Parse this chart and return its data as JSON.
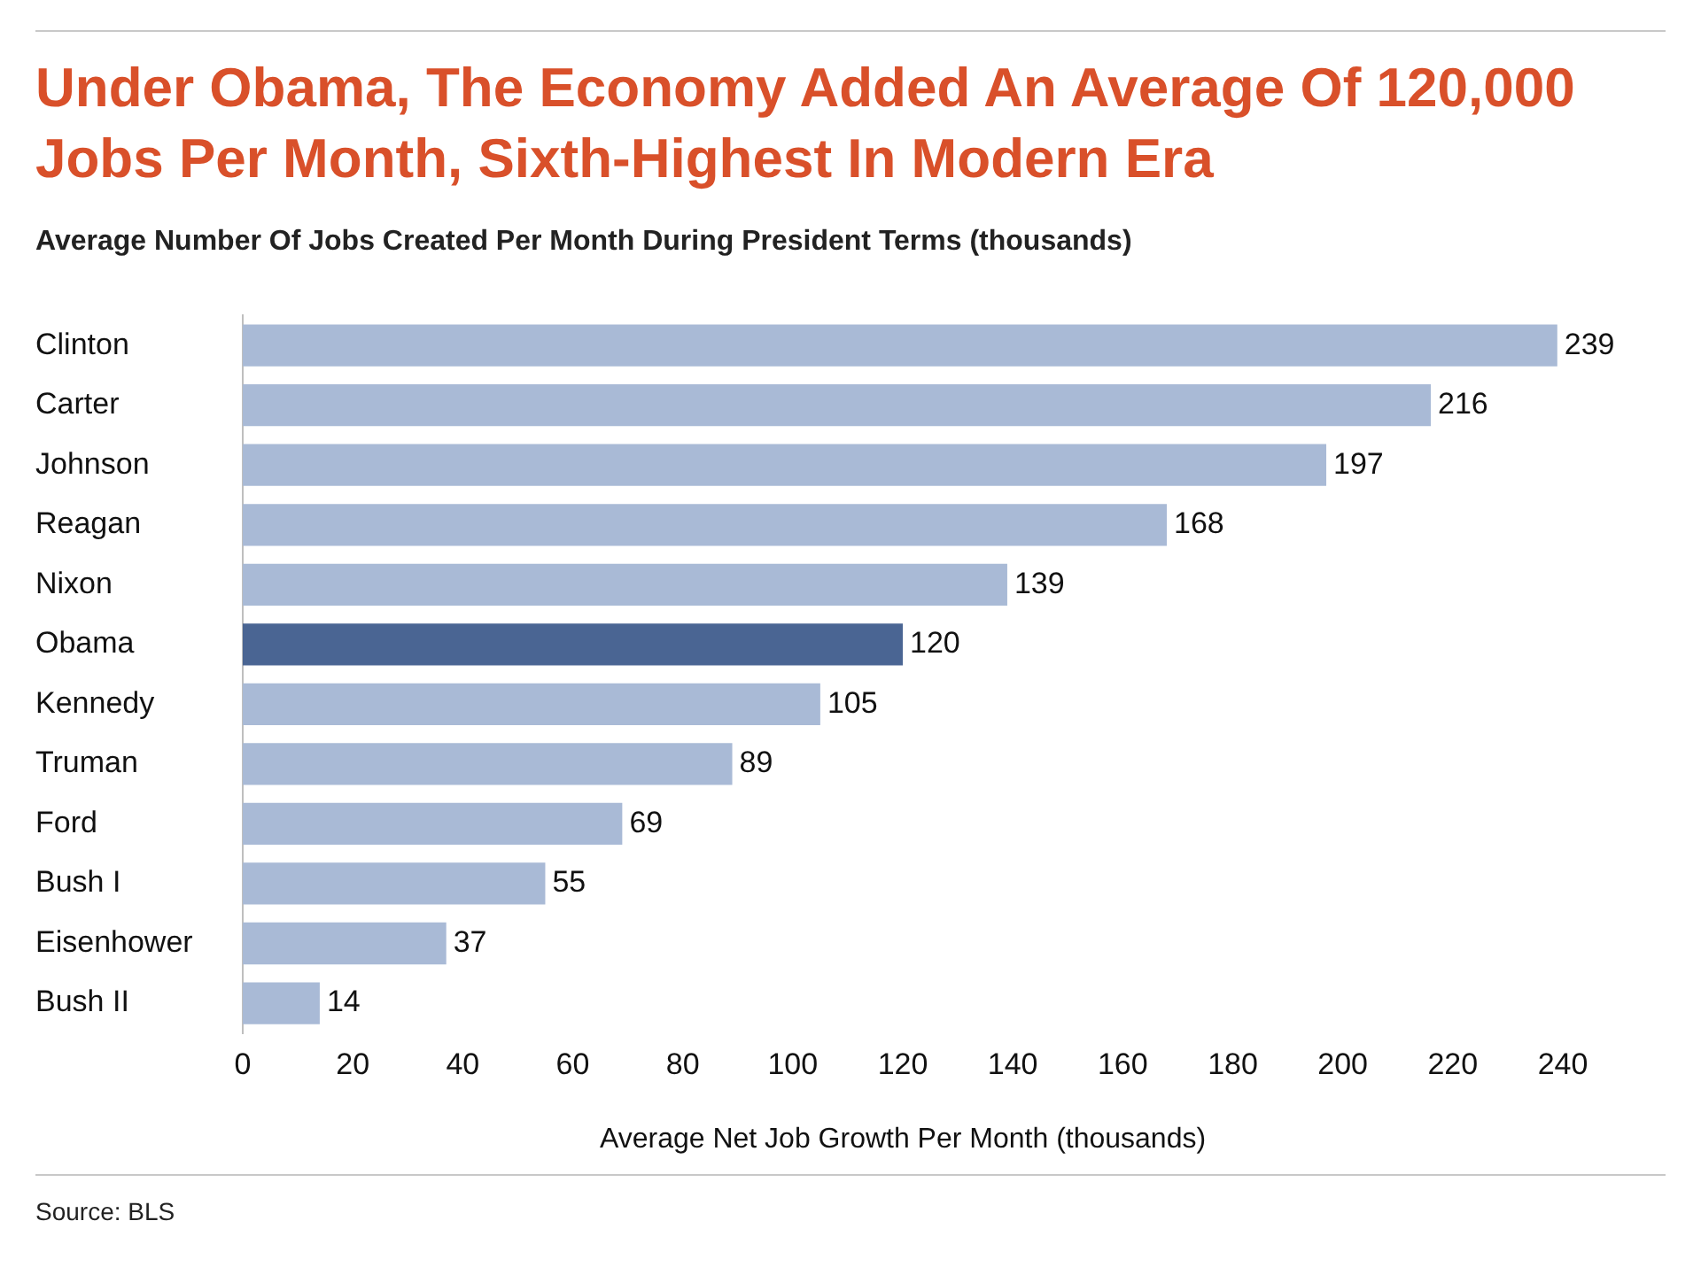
{
  "chart_data": {
    "type": "bar",
    "orientation": "horizontal",
    "title": "Under Obama, The Economy Added An Average Of 120,000 Jobs Per Month, Sixth-Highest In Modern Era",
    "subtitle": "Average Number Of Jobs Created Per Month During President Terms (thousands)",
    "xlabel": "Average Net Job Growth Per Month (thousands)",
    "categories": [
      "Clinton",
      "Carter",
      "Johnson",
      "Reagan",
      "Nixon",
      "Obama",
      "Kennedy",
      "Truman",
      "Ford",
      "Bush I",
      "Eisenhower",
      "Bush II"
    ],
    "values": [
      239,
      216,
      197,
      168,
      139,
      120,
      105,
      89,
      69,
      55,
      37,
      14
    ],
    "colors": [
      "#a9bad6",
      "#a9bad6",
      "#a9bad6",
      "#a9bad6",
      "#a9bad6",
      "#4a6593",
      "#a9bad6",
      "#a9bad6",
      "#a9bad6",
      "#a9bad6",
      "#a9bad6",
      "#a9bad6"
    ],
    "xlim": [
      0,
      240
    ],
    "xticks": [
      0,
      20,
      40,
      60,
      80,
      100,
      120,
      140,
      160,
      180,
      200,
      220,
      240
    ],
    "grid": false,
    "legend": false,
    "data_labels": true,
    "annotations": [
      "Source: BLS"
    ]
  }
}
